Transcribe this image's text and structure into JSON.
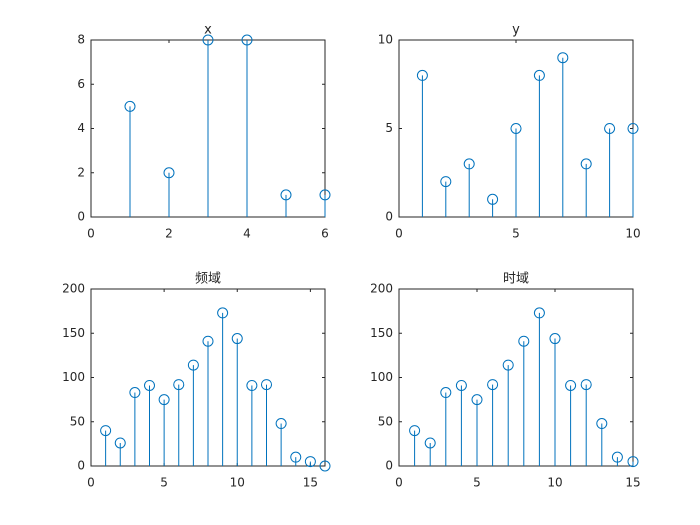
{
  "chart_data": [
    {
      "type": "stem",
      "title": "x",
      "color": "#0072bd",
      "x": [
        1,
        2,
        3,
        4,
        5,
        6
      ],
      "values": [
        5,
        2,
        8,
        8,
        1,
        1
      ],
      "xlim": [
        0,
        6
      ],
      "ylim": [
        0,
        8
      ],
      "xticks": [
        0,
        2,
        4,
        6
      ],
      "yticks": [
        0,
        2,
        4,
        6,
        8
      ]
    },
    {
      "type": "stem",
      "title": "y",
      "color": "#0072bd",
      "x": [
        1,
        2,
        3,
        4,
        5,
        6,
        7,
        8,
        9,
        10
      ],
      "values": [
        8,
        2,
        3,
        1,
        5,
        8,
        9,
        3,
        5,
        5
      ],
      "xlim": [
        0,
        10
      ],
      "ylim": [
        0,
        10
      ],
      "xticks": [
        0,
        5,
        10
      ],
      "yticks": [
        0,
        5,
        10
      ]
    },
    {
      "type": "stem",
      "title": "频域",
      "color": "#0072bd",
      "x": [
        1,
        2,
        3,
        4,
        5,
        6,
        7,
        8,
        9,
        10,
        11,
        12,
        13,
        14,
        15,
        16
      ],
      "values": [
        40,
        26,
        83,
        91,
        75,
        92,
        114,
        141,
        173,
        144,
        91,
        92,
        48,
        10,
        5,
        0
      ],
      "xlim": [
        0,
        16
      ],
      "ylim": [
        0,
        200
      ],
      "xticks": [
        0,
        5,
        10,
        15
      ],
      "yticks": [
        0,
        50,
        100,
        150,
        200
      ]
    },
    {
      "type": "stem",
      "title": "时域",
      "color": "#0072bd",
      "x": [
        1,
        2,
        3,
        4,
        5,
        6,
        7,
        8,
        9,
        10,
        11,
        12,
        13,
        14,
        15
      ],
      "values": [
        40,
        26,
        83,
        91,
        75,
        92,
        114,
        141,
        173,
        144,
        91,
        92,
        48,
        10,
        5
      ],
      "xlim": [
        0,
        15
      ],
      "ylim": [
        0,
        200
      ],
      "xticks": [
        0,
        5,
        10,
        15
      ],
      "yticks": [
        0,
        50,
        100,
        150,
        200
      ]
    }
  ]
}
